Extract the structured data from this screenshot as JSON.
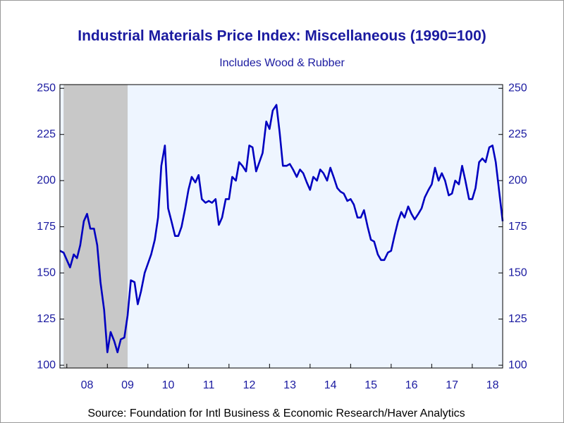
{
  "chart_data": {
    "type": "line",
    "title": "Industrial Materials Price Index: Miscellaneous (1990=100)",
    "subtitle": "Includes Wood & Rubber",
    "source": "Source:  Foundation for Intl Business & Economic Research/Haver Analytics",
    "x": [
      2007.83,
      2007.92,
      2008.0,
      2008.08,
      2008.17,
      2008.25,
      2008.33,
      2008.42,
      2008.5,
      2008.58,
      2008.67,
      2008.75,
      2008.83,
      2008.92,
      2009.0,
      2009.08,
      2009.17,
      2009.25,
      2009.33,
      2009.42,
      2009.5,
      2009.58,
      2009.67,
      2009.75,
      2009.83,
      2009.92,
      2010.0,
      2010.08,
      2010.17,
      2010.25,
      2010.33,
      2010.42,
      2010.5,
      2010.58,
      2010.67,
      2010.75,
      2010.83,
      2010.92,
      2011.0,
      2011.08,
      2011.17,
      2011.25,
      2011.33,
      2011.42,
      2011.5,
      2011.58,
      2011.67,
      2011.75,
      2011.83,
      2011.92,
      2012.0,
      2012.08,
      2012.17,
      2012.25,
      2012.33,
      2012.42,
      2012.5,
      2012.58,
      2012.67,
      2012.75,
      2012.83,
      2012.92,
      2013.0,
      2013.08,
      2013.17,
      2013.25,
      2013.33,
      2013.42,
      2013.5,
      2013.58,
      2013.67,
      2013.75,
      2013.83,
      2013.92,
      2014.0,
      2014.08,
      2014.17,
      2014.25,
      2014.33,
      2014.42,
      2014.5,
      2014.58,
      2014.67,
      2014.75,
      2014.83,
      2014.92,
      2015.0,
      2015.08,
      2015.17,
      2015.25,
      2015.33,
      2015.42,
      2015.5,
      2015.58,
      2015.67,
      2015.75,
      2015.83,
      2015.92,
      2016.0,
      2016.08,
      2016.17,
      2016.25,
      2016.33,
      2016.42,
      2016.5,
      2016.58,
      2016.67,
      2016.75,
      2016.83,
      2016.92,
      2017.0,
      2017.08,
      2017.17,
      2017.25,
      2017.33,
      2017.42,
      2017.5,
      2017.58,
      2017.67,
      2017.75,
      2017.83,
      2017.92,
      2018.0,
      2018.08,
      2018.17,
      2018.25,
      2018.33,
      2018.42,
      2018.5,
      2018.58,
      2018.67,
      2018.75
    ],
    "series": [
      {
        "color": "#0000c0",
        "values": [
          162,
          161,
          157,
          153,
          160,
          158,
          165,
          178,
          182,
          174,
          174,
          165,
          145,
          130,
          107,
          118,
          113,
          107,
          114,
          115,
          127,
          146,
          145,
          133,
          140,
          150,
          155,
          160,
          168,
          180,
          208,
          219,
          185,
          178,
          170,
          170,
          175,
          185,
          195,
          202,
          199,
          203,
          190,
          188,
          189,
          188,
          190,
          176,
          180,
          190,
          190,
          202,
          200,
          210,
          208,
          205,
          219,
          218,
          205,
          210,
          215,
          232,
          228,
          238,
          241,
          226,
          208,
          208,
          209,
          206,
          202,
          206,
          204,
          199,
          195,
          202,
          200,
          206,
          204,
          200,
          207,
          202,
          196,
          194,
          193,
          189,
          190,
          187,
          180,
          180,
          184,
          175,
          168,
          167,
          160,
          157,
          157,
          161,
          162,
          170,
          178,
          183,
          180,
          186,
          182,
          179,
          182,
          185,
          191,
          195,
          198,
          207,
          200,
          204,
          200,
          192,
          193,
          200,
          198,
          208,
          200,
          190,
          190,
          196,
          210,
          212,
          210,
          218,
          219,
          210,
          193,
          178
        ]
      }
    ],
    "shaded_regions": [
      [
        2007.92,
        2009.5
      ]
    ],
    "xlim": [
      2007.83,
      2018.75
    ],
    "xticks": [
      {
        "value": 2008,
        "label": "08"
      },
      {
        "value": 2009,
        "label": "09"
      },
      {
        "value": 2010,
        "label": "10"
      },
      {
        "value": 2011,
        "label": "11"
      },
      {
        "value": 2012,
        "label": "12"
      },
      {
        "value": 2013,
        "label": "13"
      },
      {
        "value": 2014,
        "label": "14"
      },
      {
        "value": 2015,
        "label": "15"
      },
      {
        "value": 2016,
        "label": "16"
      },
      {
        "value": 2017,
        "label": "17"
      },
      {
        "value": 2018,
        "label": "18"
      }
    ],
    "ylim": [
      98.5,
      252
    ],
    "yticks": [
      100,
      125,
      150,
      175,
      200,
      225,
      250
    ],
    "mirror_y_axis": true
  }
}
